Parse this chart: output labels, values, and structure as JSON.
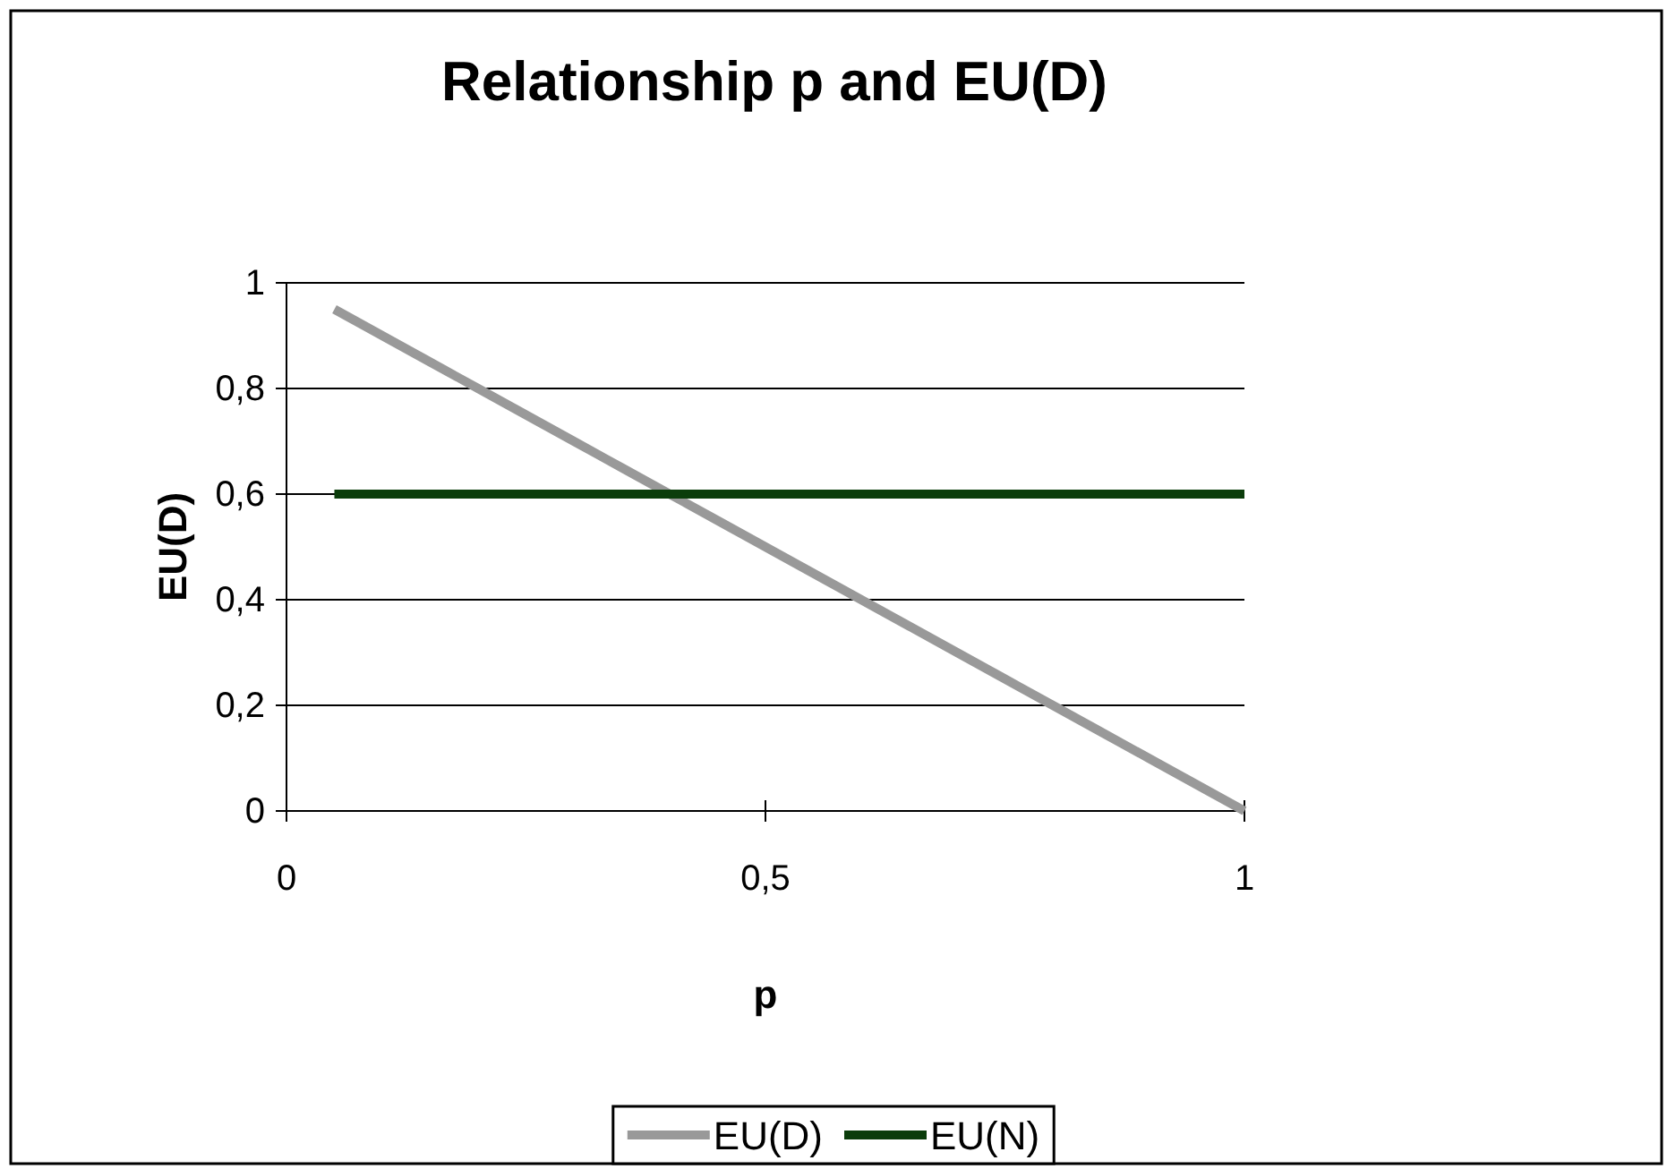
{
  "chart_data": {
    "type": "line",
    "title": "Relationship p and EU(D)",
    "xlabel": "p",
    "ylabel": "EU(D)",
    "x": [
      0.05,
      0.1,
      0.15,
      0.2,
      0.25,
      0.3,
      0.35,
      0.4,
      0.45,
      0.5,
      0.55,
      0.6,
      0.65,
      0.7,
      0.75,
      0.8,
      0.85,
      0.9,
      0.95,
      1
    ],
    "series": [
      {
        "name": "EU(D)",
        "color": "#999999",
        "values": [
          0.95,
          0.9,
          0.85,
          0.8,
          0.75,
          0.7,
          0.65,
          0.6,
          0.55,
          0.5,
          0.45,
          0.4,
          0.35,
          0.3,
          0.25,
          0.2,
          0.15,
          0.1,
          0.05,
          0
        ]
      },
      {
        "name": "EU(N)",
        "color": "#0b3d0b",
        "values": [
          0.6,
          0.6,
          0.6,
          0.6,
          0.6,
          0.6,
          0.6,
          0.6,
          0.6,
          0.6,
          0.6,
          0.6,
          0.6,
          0.6,
          0.6,
          0.6,
          0.6,
          0.6,
          0.6,
          0.6
        ]
      }
    ],
    "xlim": [
      0,
      1
    ],
    "xticks": [
      0,
      {
        "value": 0.5,
        "label": "0,5"
      },
      1
    ],
    "ylim": [
      0,
      1
    ],
    "yticks": [
      0,
      {
        "value": 0.2,
        "label": "0,2"
      },
      {
        "value": 0.4,
        "label": "0,4"
      },
      {
        "value": 0.6,
        "label": "0,6"
      },
      {
        "value": 0.8,
        "label": "0,8"
      },
      1
    ],
    "grid": "y",
    "legend": "bottom",
    "marker": "none",
    "line_style": "solid"
  }
}
